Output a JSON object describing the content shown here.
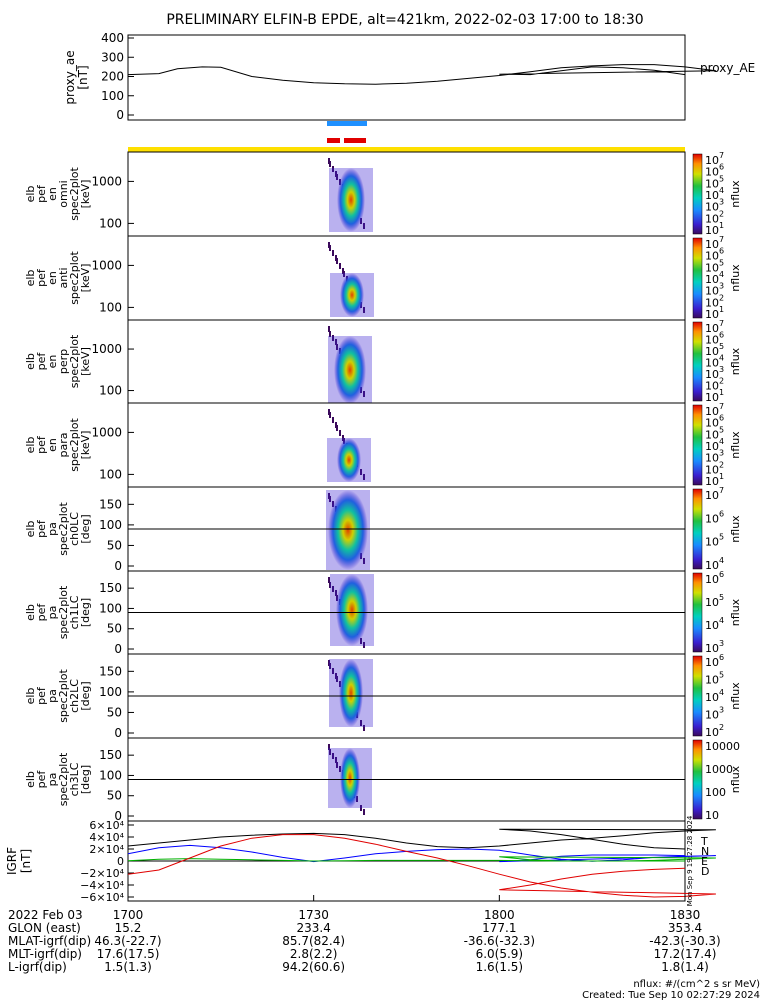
{
  "title": "PRELIMINARY ELFIN-B EPDE, alt=421km, 2022-02-03 17:00 to 18:30",
  "colors": {
    "blue_bar": "#1e90ff",
    "red_bar": "#e00000",
    "yellow_bar": "#ffe000",
    "T": "#000000",
    "N": "#0000ff",
    "E": "#00b000",
    "D": "#e00000"
  },
  "chart_data": [
    {
      "type": "line",
      "name": "proxy_ae",
      "ylabel_lines": [
        "proxy_ae",
        "[nT]"
      ],
      "yticks": [
        "400",
        "300",
        "200",
        "100",
        "0"
      ],
      "ylim": [
        0,
        400
      ],
      "legend": "proxy_AE",
      "x": [
        1700,
        1705,
        1708,
        1712,
        1715,
        1720,
        1725,
        1730,
        1735,
        1740,
        1745,
        1750,
        1755,
        1760,
        1765,
        1770,
        1775,
        1780,
        1785,
        1790,
        1795,
        1800,
        1805,
        1810,
        1815,
        1820,
        1825,
        1830
      ],
      "y": [
        210,
        215,
        240,
        250,
        248,
        200,
        180,
        168,
        162,
        160,
        165,
        175,
        190,
        205,
        225,
        245,
        255,
        262,
        262,
        250,
        230,
        212,
        210,
        230,
        250,
        245,
        232,
        210
      ]
    },
    {
      "type": "heatmap",
      "name": "en omni",
      "ylabel_lines": [
        "elb",
        "pef",
        "en",
        "omni",
        "spec2plot",
        "[keV]"
      ],
      "yticks": [
        "1000",
        "100"
      ],
      "cbar_ticks": [
        "10",
        "10",
        "10",
        "10",
        "10",
        "10",
        "10"
      ],
      "cbar_exps": [
        "7",
        "6",
        "5",
        "4",
        "3",
        "2",
        "1"
      ],
      "cbar_label": "nflux"
    },
    {
      "type": "heatmap",
      "name": "en anti",
      "ylabel_lines": [
        "elb",
        "pef",
        "en",
        "anti",
        "spec2plot",
        "[keV]"
      ],
      "yticks": [
        "1000",
        "100"
      ],
      "cbar_ticks": [
        "10",
        "10",
        "10",
        "10",
        "10",
        "10",
        "10"
      ],
      "cbar_exps": [
        "7",
        "6",
        "5",
        "4",
        "3",
        "2",
        "1"
      ],
      "cbar_label": "nflux"
    },
    {
      "type": "heatmap",
      "name": "en perp",
      "ylabel_lines": [
        "elb",
        "pef",
        "en",
        "perp",
        "spec2plot",
        "[keV]"
      ],
      "yticks": [
        "1000",
        "100"
      ],
      "cbar_ticks": [
        "10",
        "10",
        "10",
        "10",
        "10",
        "10",
        "10"
      ],
      "cbar_exps": [
        "7",
        "6",
        "5",
        "4",
        "3",
        "2",
        "1"
      ],
      "cbar_label": "nflux"
    },
    {
      "type": "heatmap",
      "name": "en para",
      "ylabel_lines": [
        "elb",
        "pef",
        "en",
        "para",
        "spec2plot",
        "[keV]"
      ],
      "yticks": [
        "1000",
        "100"
      ],
      "cbar_ticks": [
        "10",
        "10",
        "10",
        "10",
        "10",
        "10",
        "10"
      ],
      "cbar_exps": [
        "7",
        "6",
        "5",
        "4",
        "3",
        "2",
        "1"
      ],
      "cbar_label": "nflux"
    },
    {
      "type": "heatmap",
      "name": "pa ch0LC",
      "ylabel_lines": [
        "elb",
        "pef",
        "pa",
        "spec2plot",
        "ch0LC",
        "[deg]"
      ],
      "yticks": [
        "150",
        "100",
        "50",
        "0"
      ],
      "cbar_ticks": [
        "10",
        "10",
        "10",
        "10"
      ],
      "cbar_exps": [
        "7",
        "6",
        "5",
        "4"
      ],
      "cbar_label": "nflux"
    },
    {
      "type": "heatmap",
      "name": "pa ch1LC",
      "ylabel_lines": [
        "elb",
        "pef",
        "pa",
        "spec2plot",
        "ch1LC",
        "[deg]"
      ],
      "yticks": [
        "150",
        "100",
        "50",
        "0"
      ],
      "cbar_ticks": [
        "10",
        "10",
        "10",
        "10"
      ],
      "cbar_exps": [
        "6",
        "5",
        "4",
        "3"
      ],
      "cbar_label": "nflux"
    },
    {
      "type": "heatmap",
      "name": "pa ch2LC",
      "ylabel_lines": [
        "elb",
        "pef",
        "pa",
        "spec2plot",
        "ch2LC",
        "[deg]"
      ],
      "yticks": [
        "150",
        "100",
        "50",
        "0"
      ],
      "cbar_ticks": [
        "10",
        "10",
        "10",
        "10",
        "10"
      ],
      "cbar_exps": [
        "6",
        "5",
        "4",
        "3",
        "2"
      ],
      "cbar_label": "nflux"
    },
    {
      "type": "heatmap",
      "name": "pa ch3LC",
      "ylabel_lines": [
        "elb",
        "pef",
        "pa",
        "spec2plot",
        "ch3LC",
        "[deg]"
      ],
      "yticks": [
        "150",
        "100",
        "50",
        "0"
      ],
      "cbar_ticks": [
        "10000",
        "1000",
        "100",
        "10"
      ],
      "cbar_exps": [
        "",
        "",
        "",
        ""
      ],
      "cbar_label": "nflux"
    },
    {
      "type": "line",
      "name": "IGRF",
      "ylabel_lines": [
        "IGRF",
        "[nT]"
      ],
      "yticks": [
        "6×10⁴",
        "4×10⁴",
        "2×10⁴",
        "0",
        "−2×10⁴",
        "−4×10⁴",
        "−6×10⁴"
      ],
      "ylim": [
        -60000,
        60000
      ],
      "legend": [
        "T",
        "N",
        "E",
        "D"
      ],
      "side_text": "Mon Sep  9 19:27:28 2024",
      "x": [
        1700,
        1705,
        1710,
        1715,
        1720,
        1725,
        1730,
        1735,
        1740,
        1745,
        1750,
        1755,
        1760,
        1765,
        1770,
        1775,
        1780,
        1785,
        1790,
        1795,
        1800,
        1805,
        1810,
        1815,
        1820,
        1825,
        1830
      ],
      "series": [
        {
          "name": "T",
          "values": [
            25000,
            30000,
            35000,
            40000,
            43000,
            45000,
            46000,
            44000,
            38000,
            30000,
            24000,
            22000,
            25000,
            30000,
            35000,
            38000,
            42000,
            47000,
            50000,
            52000,
            53000,
            50000,
            44000,
            36000,
            28000,
            22000,
            20000
          ]
        },
        {
          "name": "N",
          "values": [
            12000,
            22000,
            26000,
            22000,
            15000,
            6000,
            -1000,
            5000,
            12000,
            16000,
            19000,
            20000,
            18000,
            10000,
            3000,
            -500,
            2000,
            6000,
            8000,
            9000,
            -1000,
            2000,
            8000,
            10000,
            10000,
            10000,
            9000
          ]
        },
        {
          "name": "E",
          "values": [
            500,
            3000,
            4000,
            3000,
            2000,
            1000,
            0,
            500,
            1000,
            1000,
            1000,
            1000,
            1000,
            500,
            0,
            0,
            0,
            1000,
            3000,
            5000,
            7000,
            2000,
            0,
            0,
            0,
            0,
            0
          ]
        },
        {
          "name": "D",
          "values": [
            -22000,
            -15000,
            5000,
            25000,
            38000,
            44000,
            44000,
            38000,
            28000,
            16000,
            5000,
            -8000,
            -22000,
            -35000,
            -45000,
            -52000,
            -57000,
            -60000,
            -59000,
            -55000,
            -48000,
            -40000,
            -30000,
            -22000,
            -17000,
            -14000,
            -12000
          ]
        }
      ]
    }
  ],
  "xaxis": {
    "ticks": [
      "1700",
      "1730",
      "1800",
      "1830"
    ]
  },
  "info_rows": [
    [
      "2022 Feb 03",
      "1700",
      "1730",
      "1800",
      "1830"
    ],
    [
      "GLON (east)",
      "15.2",
      "233.4",
      "177.1",
      "353.4"
    ],
    [
      "MLAT-igrf(dip)",
      "46.3(-22.7)",
      "85.7(82.4)",
      "-36.6(-32.3)",
      "-42.3(-30.3)"
    ],
    [
      "MLT-igrf(dip)",
      "17.6(17.5)",
      "2.8(2.2)",
      "6.0(5.9)",
      "17.2(17.4)"
    ],
    [
      "L-igrf(dip)",
      "1.5(1.3)",
      "94.2(60.6)",
      "1.6(1.5)",
      "1.8(1.4)"
    ]
  ],
  "footer": [
    "nflux: #/(cm^2 s sr MeV)",
    "Created: Tue Sep 10 02:27:29 2024"
  ]
}
